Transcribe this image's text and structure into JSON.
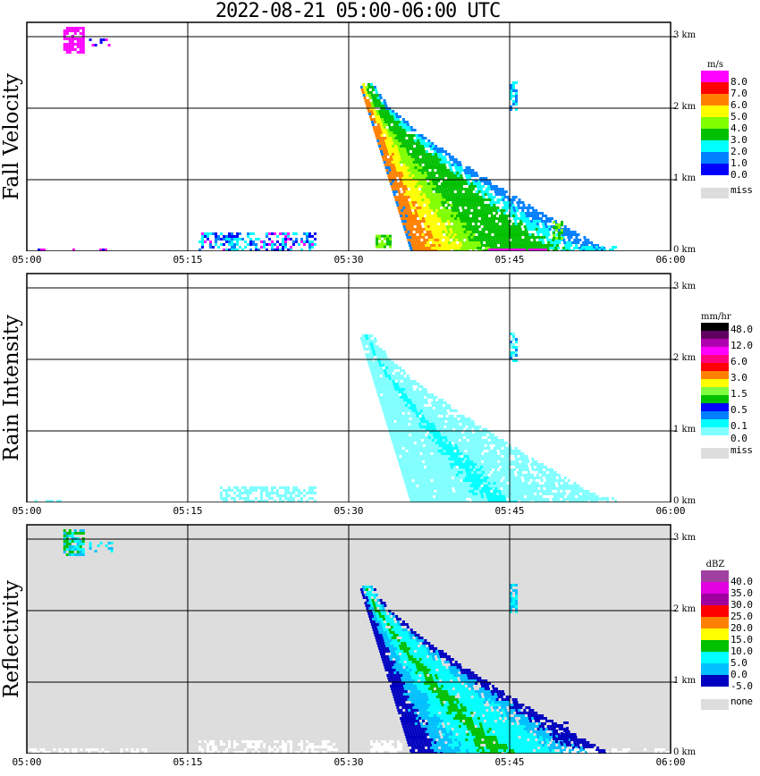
{
  "title": "2022-08-21   05:00-06:00 UTC",
  "chart_data": [
    {
      "type": "heatmap",
      "title": "Fall Velocity",
      "ylabel": "Fall Velocity",
      "xlabel": "",
      "x_ticks": [
        "05:00",
        "05:15",
        "05:30",
        "05:45",
        "06:00"
      ],
      "y_ticks": [
        "0 km",
        "1 km",
        "2 km",
        "3 km"
      ],
      "xlim": [
        "05:00",
        "06:00"
      ],
      "ylim_km": [
        0,
        3.15
      ],
      "grid": true,
      "background": "#ffffff",
      "legend": {
        "unit": "m/s",
        "placement": "right",
        "labels": [
          "8.0",
          "7.0",
          "6.0",
          "5.0",
          "4.0",
          "3.0",
          "2.0",
          "1.0",
          "0.0"
        ],
        "colors": [
          "#ff00ff",
          "#ff0000",
          "#ff8000",
          "#ffff00",
          "#80ff00",
          "#00c000",
          "#00ffff",
          "#0080ff",
          "#0000ff"
        ],
        "miss_label": "miss",
        "miss_color": "#dddddd"
      },
      "features": [
        {
          "name": "main-shaft",
          "time_start_min": 31.0,
          "time_end_min": 55.0,
          "top_km": 2.3,
          "bottom_km": 0,
          "core_color": "#00c000",
          "edge_color": "#00ffff"
        },
        {
          "name": "upper-fragment",
          "time_min": 4.5,
          "top_km": 3.1,
          "bottom_km": 2.8,
          "color": "#ff00ff"
        },
        {
          "name": "surface-cluster",
          "time_start_min": 16,
          "time_end_min": 27,
          "top_km": 0.3,
          "color": "#00ffff"
        }
      ]
    },
    {
      "type": "heatmap",
      "title": "Rain Intensity",
      "ylabel": "Rain Intensity",
      "xlabel": "",
      "x_ticks": [
        "05:00",
        "05:15",
        "05:30",
        "05:45",
        "06:00"
      ],
      "y_ticks": [
        "0 km",
        "1 km",
        "2 km",
        "3 km"
      ],
      "xlim": [
        "05:00",
        "06:00"
      ],
      "ylim_km": [
        0,
        3.15
      ],
      "grid": true,
      "background": "#ffffff",
      "legend": {
        "unit": "mm/hr",
        "placement": "right",
        "labels": [
          "48.0",
          "12.0",
          "6.0",
          "3.0",
          "1.5",
          "0.5",
          "0.1",
          "0.0"
        ],
        "colors": [
          "#000000",
          "#600060",
          "#b000b0",
          "#ff00ff",
          "#ff0080",
          "#ff0000",
          "#ff8000",
          "#ffff00",
          "#80ff40",
          "#00c000",
          "#0000ff",
          "#0080ff",
          "#00ffff",
          "#80ffff"
        ],
        "miss_label": "miss",
        "miss_color": "#dddddd"
      },
      "features": [
        {
          "name": "main-shaft",
          "time_start_min": 31.0,
          "time_end_min": 55.0,
          "top_km": 2.3,
          "bottom_km": 0,
          "core_color": "#00ffff",
          "edge_color": "#80ffff"
        },
        {
          "name": "surface-cluster",
          "time_start_min": 18,
          "time_end_min": 27,
          "top_km": 0.3,
          "color": "#80ffff"
        }
      ]
    },
    {
      "type": "heatmap",
      "title": "Reflectivity",
      "ylabel": "Reflectivity",
      "xlabel": "",
      "x_ticks": [
        "05:00",
        "05:15",
        "05:30",
        "05:45",
        "06:00"
      ],
      "y_ticks": [
        "0 km",
        "1 km",
        "2 km",
        "3 km"
      ],
      "xlim": [
        "05:00",
        "06:00"
      ],
      "ylim_km": [
        0,
        3.15
      ],
      "grid": true,
      "background": "#dddddd",
      "legend": {
        "unit": "dBZ",
        "placement": "right",
        "labels": [
          "40.0",
          "35.0",
          "30.0",
          "25.0",
          "20.0",
          "15.0",
          "10.0",
          "5.0",
          "0.0",
          "-5.0"
        ],
        "colors": [
          "#a040a0",
          "#e000e0",
          "#a000a0",
          "#ff0000",
          "#ff8000",
          "#ffff00",
          "#00c000",
          "#00ffff",
          "#00c0ff",
          "#0000c0"
        ],
        "miss_label": "none",
        "miss_color": "#dddddd"
      },
      "features": [
        {
          "name": "main-shaft",
          "time_start_min": 31.0,
          "time_end_min": 55.0,
          "top_km": 2.3,
          "bottom_km": 0,
          "core_color": "#00c000",
          "edge_color": "#0000c0"
        },
        {
          "name": "upper-fragment",
          "time_min": 4.5,
          "top_km": 3.1,
          "bottom_km": 2.8,
          "color": "#00ffff"
        }
      ]
    }
  ]
}
